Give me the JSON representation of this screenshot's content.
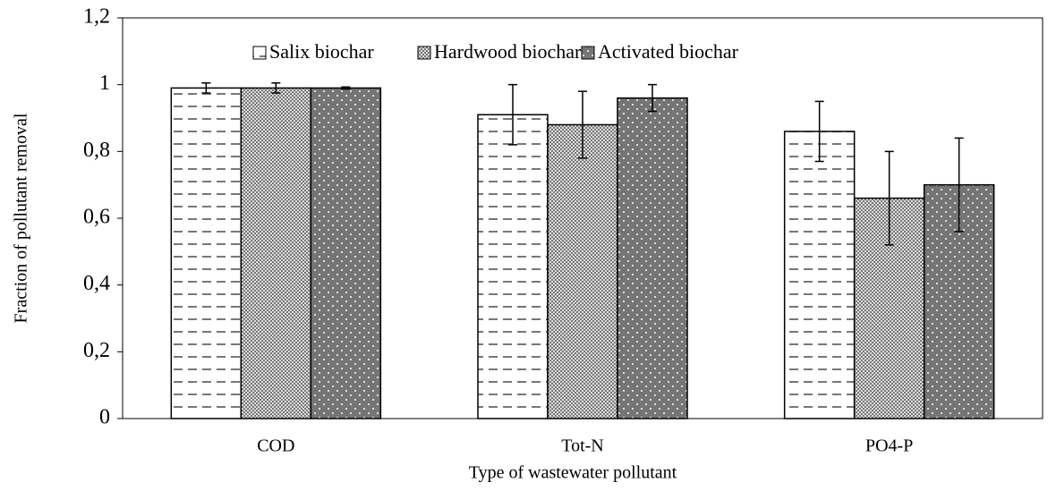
{
  "chart_data": {
    "type": "bar",
    "xlabel": "Type of wastewater pollutant",
    "ylabel": "Fraction of pollutant removal",
    "categories": [
      "COD",
      "Tot-N",
      "PO4-P"
    ],
    "series": [
      {
        "name": "Salix biochar",
        "color": "#ffffff",
        "values": [
          0.99,
          0.91,
          0.86
        ],
        "errors": [
          0.015,
          0.09,
          0.09
        ]
      },
      {
        "name": "Hardwood biochar",
        "color": "#bdbdbd",
        "values": [
          0.99,
          0.88,
          0.66
        ],
        "errors": [
          0.015,
          0.1,
          0.14
        ]
      },
      {
        "name": "Activated biochar",
        "color": "#7a7a7a",
        "values": [
          0.99,
          0.96,
          0.7
        ],
        "errors": [
          0.003,
          0.04,
          0.14
        ]
      }
    ],
    "ylim": [
      0,
      1.2
    ],
    "yticks": [
      0,
      {
        "value": 0.2,
        "label": "0,2"
      },
      {
        "value": 0.4,
        "label": "0,4"
      },
      {
        "value": 0.6,
        "label": "0,6"
      },
      {
        "value": 0.8,
        "label": "0,8"
      },
      1,
      {
        "value": 1.2,
        "label": "1,2"
      }
    ],
    "legend": "top"
  }
}
